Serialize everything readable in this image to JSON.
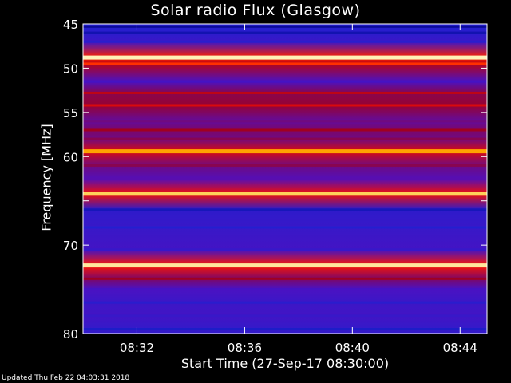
{
  "chart_data": {
    "type": "heatmap",
    "title": "Solar radio Flux (Glasgow)",
    "xlabel": "Start Time (27-Sep-17 08:30:00)",
    "ylabel": "Frequency [MHz]",
    "x_ticks": [
      "08:32",
      "08:36",
      "08:40",
      "08:44"
    ],
    "x_tick_minutes": [
      2,
      6,
      10,
      14
    ],
    "xlim_minutes": [
      0,
      15
    ],
    "y_ticks": [
      45,
      50,
      55,
      60,
      65,
      70,
      80
    ],
    "y_tick_labels": [
      "45",
      "50",
      "55",
      "60",
      "",
      "70",
      "80"
    ],
    "ylim": [
      80,
      45
    ],
    "colormap": [
      "#000080",
      "#2020d0",
      "#5010c0",
      "#a00020",
      "#ff1000",
      "#ffb000",
      "#ffffe0"
    ],
    "bands": [
      {
        "freq": 45.3,
        "intensity": 0.05
      },
      {
        "freq": 46.0,
        "intensity": 0.1
      },
      {
        "freq": 47.0,
        "intensity": 0.2
      },
      {
        "freq": 48.8,
        "intensity": 0.97
      },
      {
        "freq": 49.5,
        "intensity": 0.7
      },
      {
        "freq": 51.5,
        "intensity": 0.3
      },
      {
        "freq": 52.8,
        "intensity": 0.55
      },
      {
        "freq": 54.2,
        "intensity": 0.6
      },
      {
        "freq": 56.0,
        "intensity": 0.4
      },
      {
        "freq": 57.0,
        "intensity": 0.5
      },
      {
        "freq": 58.0,
        "intensity": 0.45
      },
      {
        "freq": 59.4,
        "intensity": 0.82
      },
      {
        "freq": 61.0,
        "intensity": 0.45
      },
      {
        "freq": 62.5,
        "intensity": 0.35
      },
      {
        "freq": 64.2,
        "intensity": 0.9
      },
      {
        "freq": 66.0,
        "intensity": 0.12
      },
      {
        "freq": 68.0,
        "intensity": 0.18
      },
      {
        "freq": 70.5,
        "intensity": 0.25
      },
      {
        "freq": 72.3,
        "intensity": 0.95
      },
      {
        "freq": 73.8,
        "intensity": 0.5
      },
      {
        "freq": 75.0,
        "intensity": 0.3
      },
      {
        "freq": 76.5,
        "intensity": 0.2
      },
      {
        "freq": 78.0,
        "intensity": 0.25
      },
      {
        "freq": 79.5,
        "intensity": 0.15
      }
    ]
  },
  "footer": "Updated Thu Feb 22 04:03:31 2018"
}
